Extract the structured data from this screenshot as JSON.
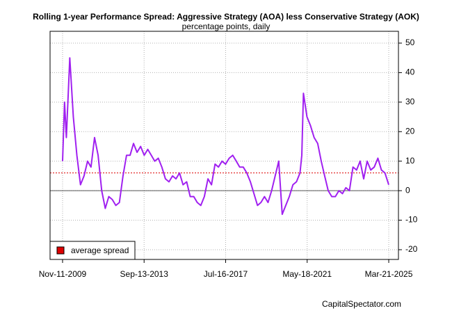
{
  "chart_data": {
    "type": "line",
    "title": "Rolling 1-year Performance Spread: Aggressive Strategy (AOA) less Conservative Strategy (AOK)",
    "subtitle": "percentage points, daily",
    "source": "CapitalSpectator.com",
    "x": [
      "2009-11-11",
      "2009-12-15",
      "2010-01-15",
      "2010-03-15",
      "2010-05-15",
      "2010-07-15",
      "2010-09-15",
      "2010-11-15",
      "2011-01-15",
      "2011-03-15",
      "2011-05-15",
      "2011-07-15",
      "2011-09-15",
      "2011-11-15",
      "2012-01-15",
      "2012-03-15",
      "2012-05-15",
      "2012-07-15",
      "2012-09-15",
      "2012-11-15",
      "2013-01-15",
      "2013-03-15",
      "2013-05-15",
      "2013-07-15",
      "2013-09-15",
      "2013-11-15",
      "2014-01-15",
      "2014-03-15",
      "2014-05-15",
      "2014-07-15",
      "2014-09-15",
      "2014-11-15",
      "2015-01-15",
      "2015-03-15",
      "2015-05-15",
      "2015-07-15",
      "2015-09-15",
      "2015-11-15",
      "2016-01-15",
      "2016-03-15",
      "2016-05-15",
      "2016-07-15",
      "2016-09-15",
      "2016-11-15",
      "2017-01-15",
      "2017-03-15",
      "2017-05-15",
      "2017-07-15",
      "2017-09-15",
      "2017-11-15",
      "2018-01-15",
      "2018-03-15",
      "2018-05-15",
      "2018-07-15",
      "2018-09-15",
      "2018-11-15",
      "2019-01-15",
      "2019-03-15",
      "2019-05-15",
      "2019-07-15",
      "2019-09-15",
      "2019-11-15",
      "2020-01-15",
      "2020-03-15",
      "2020-05-15",
      "2020-07-15",
      "2020-09-15",
      "2020-11-15",
      "2021-01-15",
      "2021-02-15",
      "2021-03-15",
      "2021-05-15",
      "2021-07-15",
      "2021-09-15",
      "2021-11-15",
      "2022-01-15",
      "2022-03-15",
      "2022-05-15",
      "2022-07-15",
      "2022-09-15",
      "2022-11-15",
      "2023-01-15",
      "2023-03-15",
      "2023-05-15",
      "2023-07-15",
      "2023-09-15",
      "2023-11-15",
      "2024-01-15",
      "2024-03-15",
      "2024-05-15",
      "2024-07-15",
      "2024-09-15",
      "2024-11-15",
      "2025-01-15",
      "2025-03-21"
    ],
    "values": [
      10,
      30,
      18,
      45,
      25,
      12,
      2,
      5,
      10,
      8,
      18,
      12,
      0,
      -6,
      -2,
      -3,
      -5,
      -4,
      5,
      12,
      12,
      16,
      13,
      15,
      12,
      14,
      12,
      10,
      11,
      8,
      4,
      3,
      5,
      4,
      6,
      2,
      3,
      -2,
      -2,
      -4,
      -5,
      -2,
      4,
      2,
      9,
      8,
      10,
      9,
      11,
      12,
      10,
      8,
      8,
      6,
      3,
      -1,
      -5,
      -4,
      -2,
      -4,
      0,
      5,
      10,
      -8,
      -5,
      -2,
      2,
      3,
      6,
      12,
      33,
      25,
      22,
      18,
      16,
      10,
      5,
      0,
      -2,
      -2,
      0,
      -1,
      1,
      0,
      8,
      7,
      10,
      4,
      10,
      7,
      8,
      11,
      7,
      6,
      2
    ],
    "color": "#a020f0",
    "average": {
      "name": "average spread",
      "value": 6,
      "color": "#dd0000"
    },
    "baseline": 0,
    "xlim": [
      "2009-04-10",
      "2025-09-04"
    ],
    "xticks": [
      {
        "value": "2009-11-11",
        "label": "Nov-11-2009"
      },
      {
        "value": "2013-09-13",
        "label": "Sep-13-2013"
      },
      {
        "value": "2017-07-16",
        "label": "Jul-16-2017"
      },
      {
        "value": "2021-05-18",
        "label": "May-18-2021"
      },
      {
        "value": "2025-03-21",
        "label": "Mar-21-2025"
      }
    ],
    "ylim": [
      -23.3,
      54
    ],
    "yticks": [
      -20,
      -10,
      0,
      10,
      20,
      30,
      40,
      50
    ],
    "grid": true,
    "legend": "bottom-left"
  }
}
